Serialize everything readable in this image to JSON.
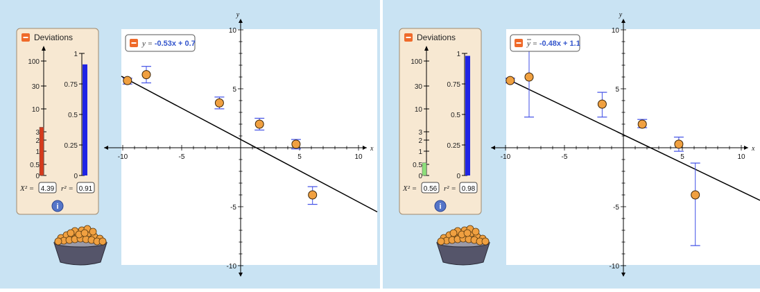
{
  "panels": [
    {
      "deviations_label": "Deviations",
      "equation": {
        "prefix": "y = ",
        "value": "-0.53x + 0.7",
        "m": -0.53,
        "b": 0.7,
        "bar_over_y": false
      },
      "chi_label": "X² =",
      "chi_value": "4.39",
      "chi_level": 4.39,
      "r2_label": "r² =",
      "r2_value": "0.91",
      "r2_level": 0.91,
      "chi_bar_color": "#d63a1c",
      "points": [
        {
          "x": -9.6,
          "y": 5.7,
          "lo": 5.4,
          "hi": 5.9
        },
        {
          "x": -8.0,
          "y": 6.2,
          "lo": 5.5,
          "hi": 6.9
        },
        {
          "x": -1.8,
          "y": 3.8,
          "lo": 3.3,
          "hi": 4.3
        },
        {
          "x": 1.6,
          "y": 2.0,
          "lo": 1.5,
          "hi": 2.5
        },
        {
          "x": 4.7,
          "y": 0.3,
          "lo": -0.1,
          "hi": 0.7
        },
        {
          "x": 6.1,
          "y": -4.0,
          "lo": -4.8,
          "hi": -3.3
        }
      ]
    },
    {
      "deviations_label": "Deviations",
      "equation": {
        "prefix": "y = ",
        "value": "-0.48x + 1.1",
        "m": -0.48,
        "b": 1.1,
        "bar_over_y": true
      },
      "chi_label": "X² =",
      "chi_value": "0.56",
      "chi_level": 0.56,
      "r2_label": "r² =",
      "r2_value": "0.98",
      "r2_level": 0.98,
      "chi_bar_color": "#8de07a",
      "points": [
        {
          "x": -9.6,
          "y": 5.7,
          "lo": 5.5,
          "hi": 5.9
        },
        {
          "x": -8.0,
          "y": 6.0,
          "lo": 2.6,
          "hi": 9.3
        },
        {
          "x": -1.8,
          "y": 3.7,
          "lo": 2.6,
          "hi": 4.7
        },
        {
          "x": 1.6,
          "y": 2.0,
          "lo": 1.7,
          "hi": 2.4
        },
        {
          "x": 4.7,
          "y": 0.3,
          "lo": -0.3,
          "hi": 0.9
        },
        {
          "x": 6.1,
          "y": -4.0,
          "lo": -8.3,
          "hi": -1.3
        }
      ]
    }
  ],
  "axis": {
    "x_name": "x",
    "y_name": "y",
    "x_ticks": [
      -10,
      -5,
      5,
      10
    ],
    "y_ticks": [
      10,
      5,
      -5,
      -10
    ],
    "xlim": [
      -10,
      10
    ],
    "ylim": [
      -10,
      10
    ]
  },
  "chi_scale": {
    "labels": [
      "100",
      "30",
      "10",
      "3",
      "2",
      "1",
      "0.5",
      "0"
    ],
    "values": [
      100,
      30,
      10,
      3,
      2,
      1,
      0.5,
      0
    ]
  },
  "r2_scale": {
    "labels": [
      "1",
      "0.75",
      "0.5",
      "0.25",
      "0"
    ],
    "values": [
      1,
      0.75,
      0.5,
      0.25,
      0
    ]
  },
  "colors": {
    "panel_bg": "#c9e3f3",
    "card_bg": "#f7e8d2",
    "accent": "#ef6a2a",
    "eq_blue": "#3355cc",
    "r2_bar": "#1f24e5",
    "point_fill": "#f0a040",
    "error_bar": "#3f4ee6"
  },
  "icons": {
    "minus_toggle": "minus-icon",
    "info": "info-icon",
    "bowl": "bowl-of-points-icon"
  }
}
